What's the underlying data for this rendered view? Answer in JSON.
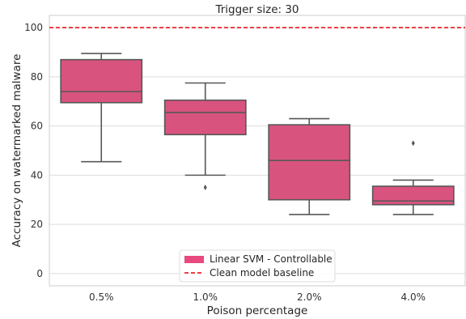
{
  "chart_data": {
    "type": "box",
    "title": "Trigger size: 30",
    "xlabel": "Poison percentage",
    "ylabel": "Accuracy on watermarked malware",
    "ylim": [
      -5,
      105
    ],
    "yticks": [
      0,
      20,
      40,
      60,
      80,
      100
    ],
    "grid": "horizontal",
    "categories": [
      "0.5%",
      "1.0%",
      "2.0%",
      "4.0%"
    ],
    "series": [
      {
        "name": "Linear SVM - Controllable",
        "color": "#d9537f",
        "boxes": [
          {
            "whisker_low": 45.5,
            "q1": 69.5,
            "median": 74,
            "q3": 87,
            "whisker_high": 89.5,
            "outliers": []
          },
          {
            "whisker_low": 40,
            "q1": 56.5,
            "median": 65.5,
            "q3": 70.5,
            "whisker_high": 77.5,
            "outliers": [
              35
            ]
          },
          {
            "whisker_low": 24,
            "q1": 30,
            "median": 46,
            "q3": 60.5,
            "whisker_high": 63,
            "outliers": []
          },
          {
            "whisker_low": 24,
            "q1": 28,
            "median": 29.5,
            "q3": 35.5,
            "whisker_high": 38,
            "outliers": [
              53
            ]
          }
        ]
      }
    ],
    "reference_lines": [
      {
        "name": "Clean model baseline",
        "y": 100,
        "color": "#e8000b",
        "style": "dashed"
      }
    ],
    "legend": {
      "position": "bottom-center",
      "items": [
        "Linear SVM - Controllable",
        "Clean model baseline"
      ],
      "patch_color": "#e8497f"
    }
  }
}
